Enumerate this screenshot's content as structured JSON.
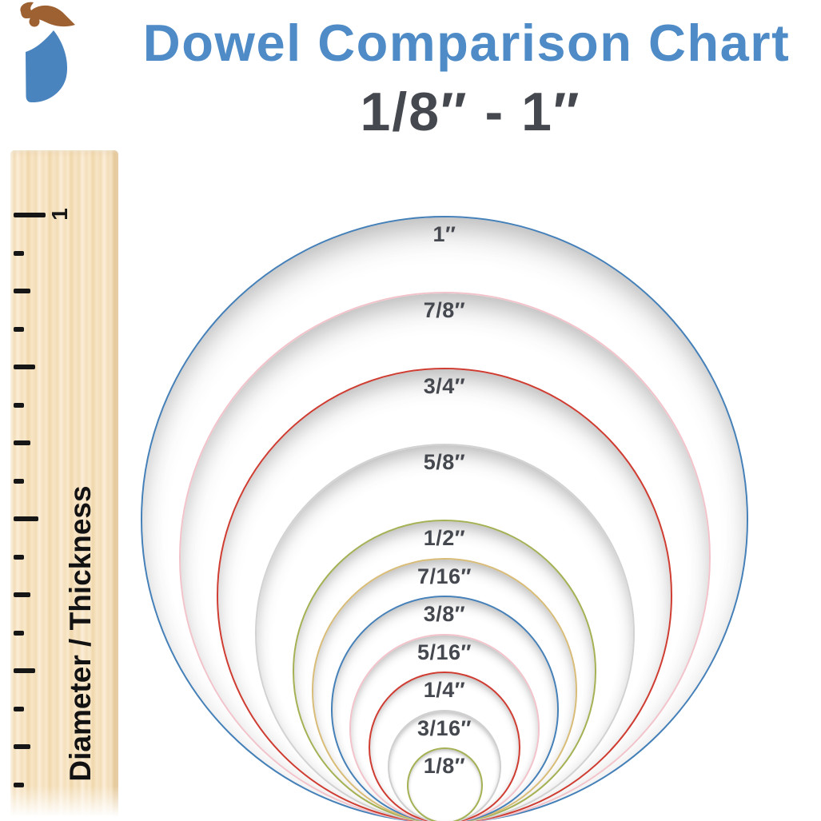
{
  "header": {
    "title": "Dowel Comparison Chart",
    "title_color": "#4e8bc7",
    "subtitle": "1/8″ - 1″",
    "subtitle_color": "#45494f"
  },
  "logo": {
    "name": "woodpecker-logo",
    "body_color": "#4a84bf",
    "crest_color": "#9e6132"
  },
  "ruler": {
    "axis_label": "Diameter / Thickness",
    "axis_label_color": "#121212",
    "inch_label": "1",
    "tick_color": "#161616",
    "ticks": [
      {
        "value": "1",
        "level": "inch",
        "label": "1"
      },
      {
        "value": "15/16",
        "level": "sixteenth",
        "label": ""
      },
      {
        "value": "7/8",
        "level": "eighth",
        "label": ""
      },
      {
        "value": "13/16",
        "level": "sixteenth",
        "label": ""
      },
      {
        "value": "3/4",
        "level": "quarter",
        "label": ""
      },
      {
        "value": "11/16",
        "level": "sixteenth",
        "label": ""
      },
      {
        "value": "5/8",
        "level": "eighth",
        "label": ""
      },
      {
        "value": "9/16",
        "level": "sixteenth",
        "label": ""
      },
      {
        "value": "1/2",
        "level": "half",
        "label": ""
      },
      {
        "value": "7/16",
        "level": "sixteenth",
        "label": ""
      },
      {
        "value": "3/8",
        "level": "eighth",
        "label": ""
      },
      {
        "value": "5/16",
        "level": "sixteenth",
        "label": ""
      },
      {
        "value": "1/4",
        "level": "quarter",
        "label": ""
      },
      {
        "value": "3/16",
        "level": "sixteenth",
        "label": ""
      },
      {
        "value": "1/8",
        "level": "eighth",
        "label": ""
      },
      {
        "value": "1/16",
        "level": "sixteenth",
        "label": ""
      }
    ]
  },
  "chart": {
    "label_color": "#45494f",
    "circles": [
      {
        "label": "1″",
        "slug": "1",
        "value_in": 1.0,
        "color": "#4580b8"
      },
      {
        "label": "7/8″",
        "slug": "7-8",
        "value_in": 0.875,
        "color": "#f2c3ca"
      },
      {
        "label": "3/4″",
        "slug": "3-4",
        "value_in": 0.75,
        "color": "#cf3c31"
      },
      {
        "label": "5/8″",
        "slug": "5-8",
        "value_in": 0.625,
        "color": "#d2d2d2"
      },
      {
        "label": "1/2″",
        "slug": "1-2",
        "value_in": 0.5,
        "color": "#a5b154"
      },
      {
        "label": "7/16″",
        "slug": "7-16",
        "value_in": 0.4375,
        "color": "#d8bc77"
      },
      {
        "label": "3/8″",
        "slug": "3-8",
        "value_in": 0.375,
        "color": "#4580b8"
      },
      {
        "label": "5/16″",
        "slug": "5-16",
        "value_in": 0.3125,
        "color": "#f2c3ca"
      },
      {
        "label": "1/4″",
        "slug": "1-4",
        "value_in": 0.25,
        "color": "#cf3c31"
      },
      {
        "label": "3/16″",
        "slug": "3-16",
        "value_in": 0.1875,
        "color": "#cfcfcf"
      },
      {
        "label": "1/8″",
        "slug": "1-8",
        "value_in": 0.125,
        "color": "#a5b154"
      }
    ]
  }
}
